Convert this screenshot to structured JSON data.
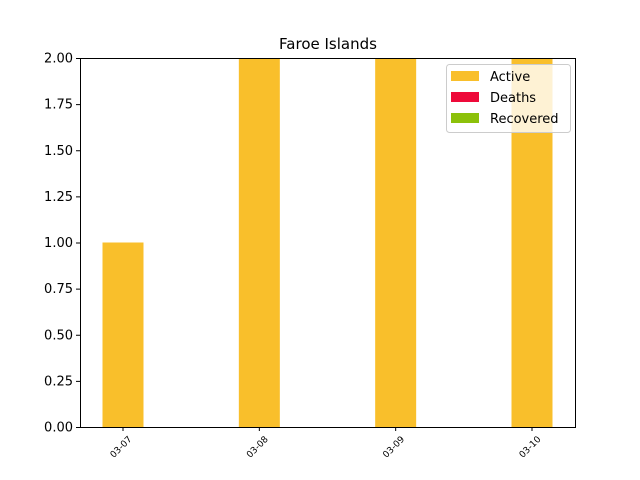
{
  "chart_data": {
    "type": "bar",
    "stacked": true,
    "title": "Faroe Islands",
    "xlabel": "",
    "ylabel": "",
    "categories": [
      "03-07",
      "03-08",
      "03-09",
      "03-10"
    ],
    "series": [
      {
        "name": "Active",
        "values": [
          1,
          2,
          2,
          2
        ],
        "color": "#f9bf2b"
      },
      {
        "name": "Deaths",
        "values": [
          0,
          0,
          0,
          0
        ],
        "color": "#ee0a3a"
      },
      {
        "name": "Recovered",
        "values": [
          0,
          0,
          0,
          0
        ],
        "color": "#8cc10a"
      }
    ],
    "ylim": [
      0,
      2
    ],
    "yticks": [
      "0.00",
      "0.25",
      "0.50",
      "0.75",
      "1.00",
      "1.25",
      "1.50",
      "1.75",
      "2.00"
    ],
    "grid": false,
    "legend": "top-right"
  }
}
